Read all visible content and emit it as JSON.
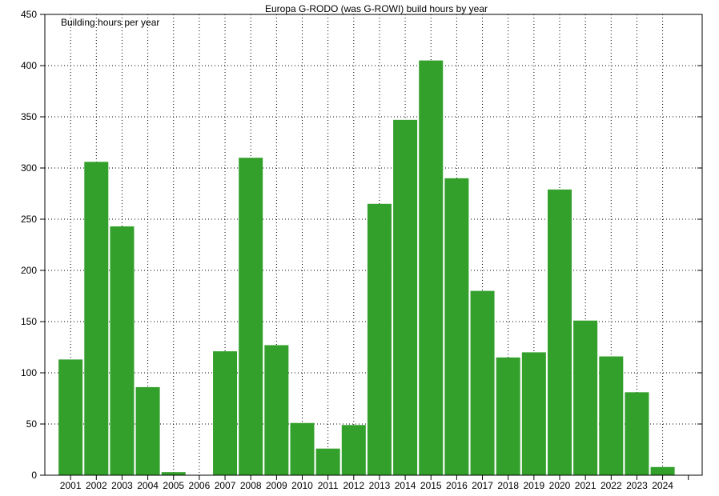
{
  "colors": {
    "bar": "#33a02c",
    "grid": "#000000",
    "background": "#ffffff"
  },
  "chart_data": {
    "type": "bar",
    "title": "Europa G-RODO (was G-ROWI) build hours by year",
    "legend": "Building hours per year",
    "legend_position": "top-left",
    "xlabel": "",
    "ylabel": "",
    "ylim": [
      0,
      450
    ],
    "yticks": [
      0,
      50,
      100,
      150,
      200,
      250,
      300,
      350,
      400,
      450
    ],
    "grid": true,
    "categories": [
      "2001",
      "2002",
      "2003",
      "2004",
      "2005",
      "2006",
      "2007",
      "2008",
      "2009",
      "2010",
      "2011",
      "2012",
      "2013",
      "2014",
      "2015",
      "2016",
      "2017",
      "2018",
      "2019",
      "2020",
      "2021",
      "2022",
      "2023",
      "2024"
    ],
    "values": [
      113,
      306,
      243,
      86,
      3,
      0,
      121,
      310,
      127,
      51,
      26,
      49,
      265,
      347,
      405,
      290,
      180,
      115,
      120,
      279,
      151,
      116,
      81,
      8
    ]
  }
}
